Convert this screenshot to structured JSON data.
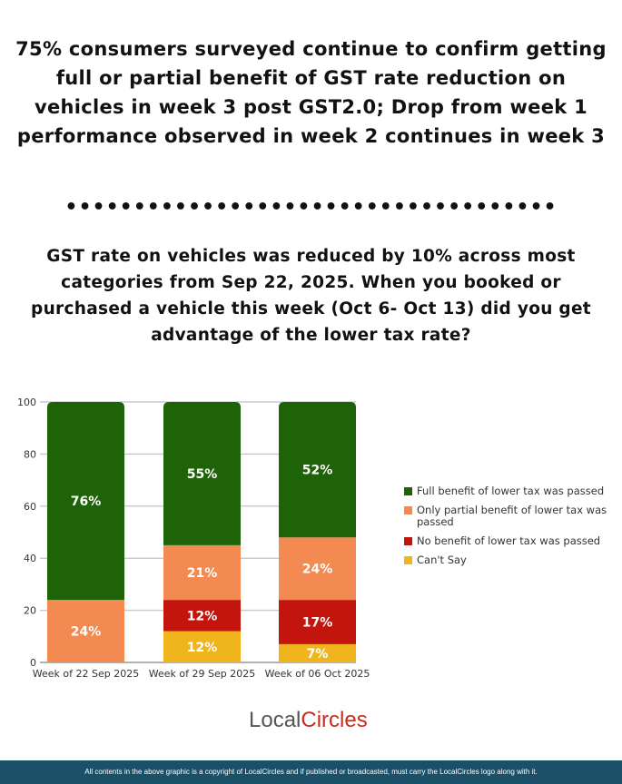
{
  "title": "75% consumers surveyed continue to confirm getting full or partial benefit of GST rate reduction on vehicles in week 3 post GST2.0; Drop from week 1 performance observed in week 2 continues in week 3",
  "separator": "••••••••••••••••••••••••••••••••••••",
  "question": "GST rate on vehicles was reduced by 10% across most categories from Sep 22, 2025. When you booked or purchased a vehicle this week (Oct 6- Oct 13) did you get advantage of the lower tax rate?",
  "chart_data": {
    "type": "bar",
    "stacked": true,
    "categories": [
      "Week of 22 Sep 2025",
      "Week of 29 Sep 2025",
      "Week of 06 Oct 2025"
    ],
    "series": [
      {
        "name": "Can't Say",
        "color": "#f0b41c",
        "values": [
          0,
          12,
          7
        ]
      },
      {
        "name": "No benefit of lower tax was passed",
        "color": "#c4140e",
        "values": [
          0,
          12,
          17
        ]
      },
      {
        "name": "Only partial benefit of lower tax was passed",
        "color": "#f28a52",
        "values": [
          24,
          21,
          24
        ]
      },
      {
        "name": "Full benefit of lower tax was passed",
        "color": "#1e6308",
        "values": [
          76,
          55,
          52
        ]
      }
    ],
    "legend_order": [
      3,
      2,
      1,
      0
    ],
    "yticks": [
      0,
      20,
      40,
      60,
      80,
      100
    ],
    "ylim": [
      0,
      100
    ],
    "grid": true,
    "legend_position": "right",
    "data_label_suffix": "%"
  },
  "logo": {
    "part1": "Local",
    "part2": "Circles"
  },
  "footer": "All contents in the above graphic is a copyright of LocalCircles and if published or broadcasted, must carry the LocalCircles logo along with it."
}
